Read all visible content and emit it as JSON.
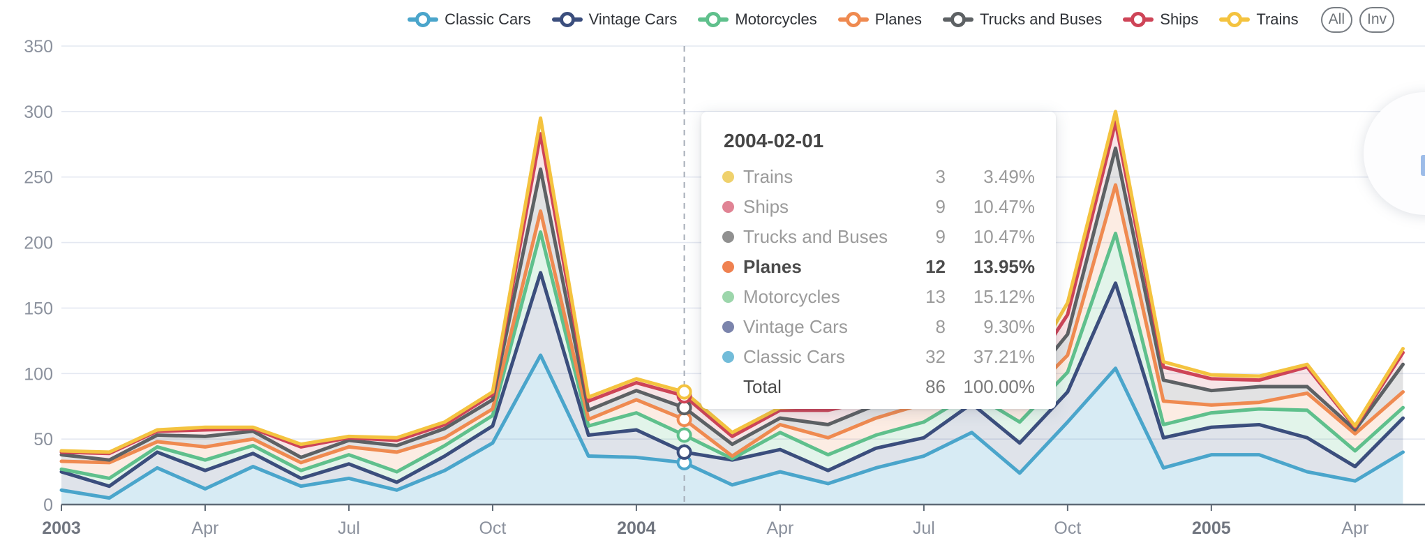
{
  "legend": {
    "items": [
      {
        "label": "Classic Cars",
        "color": "#4aa5cb"
      },
      {
        "label": "Vintage Cars",
        "color": "#3b4e7d"
      },
      {
        "label": "Motorcycles",
        "color": "#5fc08c"
      },
      {
        "label": "Planes",
        "color": "#ef8a50"
      },
      {
        "label": "Trucks and Buses",
        "color": "#5d6164"
      },
      {
        "label": "Ships",
        "color": "#ce4457"
      },
      {
        "label": "Trains",
        "color": "#f4c33f"
      }
    ],
    "buttons": [
      {
        "label": "All",
        "name": "legend-select-all-button"
      },
      {
        "label": "Inv",
        "name": "legend-invert-button"
      }
    ]
  },
  "chart_data": {
    "type": "area",
    "stacked": true,
    "grid": true,
    "x": [
      "2003-01",
      "2003-02",
      "2003-03",
      "2003-04",
      "2003-05",
      "2003-06",
      "2003-07",
      "2003-08",
      "2003-09",
      "2003-10",
      "2003-11",
      "2003-12",
      "2004-01",
      "2004-02",
      "2004-03",
      "2004-04",
      "2004-05",
      "2004-06",
      "2004-07",
      "2004-08",
      "2004-09",
      "2004-10",
      "2004-11",
      "2004-12",
      "2005-01",
      "2005-02",
      "2005-03",
      "2005-04",
      "2005-05"
    ],
    "x_tick_labels": [
      {
        "index": 0,
        "label": "2003",
        "bold": true
      },
      {
        "index": 3,
        "label": "Apr",
        "bold": false
      },
      {
        "index": 6,
        "label": "Jul",
        "bold": false
      },
      {
        "index": 9,
        "label": "Oct",
        "bold": false
      },
      {
        "index": 12,
        "label": "2004",
        "bold": true
      },
      {
        "index": 15,
        "label": "Apr",
        "bold": false
      },
      {
        "index": 18,
        "label": "Jul",
        "bold": false
      },
      {
        "index": 21,
        "label": "Oct",
        "bold": false
      },
      {
        "index": 24,
        "label": "2005",
        "bold": true
      },
      {
        "index": 27,
        "label": "Apr",
        "bold": false
      }
    ],
    "ylim": [
      0,
      350
    ],
    "y_ticks": [
      0,
      50,
      100,
      150,
      200,
      250,
      300,
      350
    ],
    "series": [
      {
        "name": "Classic Cars",
        "color": "#4aa5cb",
        "fill": "rgba(74,165,203,0.22)",
        "values": [
          11,
          5,
          28,
          12,
          29,
          14,
          20,
          11,
          26,
          47,
          114,
          37,
          36,
          32,
          15,
          25,
          16,
          28,
          37,
          55,
          24,
          63,
          104,
          28,
          38,
          38,
          25,
          18,
          40
        ]
      },
      {
        "name": "Vintage Cars",
        "color": "#3b4e7d",
        "fill": "rgba(59,78,125,0.16)",
        "values": [
          14,
          9,
          12,
          14,
          10,
          6,
          11,
          6,
          11,
          13,
          63,
          16,
          21,
          8,
          19,
          17,
          10,
          15,
          14,
          22,
          23,
          23,
          65,
          23,
          21,
          23,
          26,
          11,
          26
        ]
      },
      {
        "name": "Motorcycles",
        "color": "#5fc08c",
        "fill": "rgba(95,192,140,0.18)",
        "values": [
          2,
          6,
          4,
          8,
          6,
          6,
          7,
          8,
          8,
          8,
          31,
          7,
          13,
          13,
          1,
          13,
          12,
          10,
          12,
          8,
          16,
          15,
          38,
          10,
          11,
          12,
          21,
          12,
          8
        ]
      },
      {
        "name": "Planes",
        "color": "#ef8a50",
        "fill": "rgba(239,138,80,0.16)",
        "values": [
          6,
          12,
          4,
          10,
          5,
          6,
          6,
          15,
          6,
          5,
          16,
          5,
          10,
          12,
          2,
          6,
          13,
          13,
          14,
          5,
          14,
          13,
          37,
          18,
          6,
          5,
          13,
          13,
          12
        ]
      },
      {
        "name": "Trucks and Buses",
        "color": "#5d6164",
        "fill": "rgba(93,97,100,0.18)",
        "values": [
          5,
          2,
          5,
          8,
          6,
          4,
          5,
          5,
          7,
          7,
          32,
          7,
          7,
          9,
          9,
          5,
          10,
          10,
          5,
          6,
          8,
          16,
          28,
          16,
          11,
          12,
          5,
          3,
          21
        ]
      },
      {
        "name": "Ships",
        "color": "#ce4457",
        "fill": "rgba(206,68,87,0.14)",
        "values": [
          2,
          5,
          3,
          5,
          2,
          8,
          2,
          4,
          3,
          4,
          27,
          7,
          6,
          9,
          6,
          6,
          11,
          4,
          5,
          5,
          4,
          15,
          20,
          10,
          9,
          5,
          15,
          2,
          9
        ]
      },
      {
        "name": "Trains",
        "color": "#f4c33f",
        "fill": "rgba(244,195,63,0.14)",
        "values": [
          1,
          1,
          1,
          2,
          1,
          2,
          1,
          2,
          2,
          2,
          12,
          3,
          3,
          3,
          3,
          2,
          3,
          3,
          2,
          2,
          2,
          9,
          8,
          4,
          3,
          3,
          2,
          1,
          3
        ]
      }
    ],
    "highlight": {
      "x_index": 13,
      "date": "2004-02-01"
    },
    "legend_position": "top"
  },
  "tooltip": {
    "title": "2004-02-01",
    "rows": [
      {
        "label": "Trains",
        "value": "3",
        "percent": "3.49%",
        "color": "#efd16c",
        "bold": false,
        "is_total": false
      },
      {
        "label": "Ships",
        "value": "9",
        "percent": "10.47%",
        "color": "#e08394",
        "bold": false,
        "is_total": false
      },
      {
        "label": "Trucks and Buses",
        "value": "9",
        "percent": "10.47%",
        "color": "#909090",
        "bold": false,
        "is_total": false
      },
      {
        "label": "Planes",
        "value": "12",
        "percent": "13.95%",
        "color": "#ef8150",
        "bold": true,
        "is_total": false
      },
      {
        "label": "Motorcycles",
        "value": "13",
        "percent": "15.12%",
        "color": "#9cd6ab",
        "bold": false,
        "is_total": false
      },
      {
        "label": "Vintage Cars",
        "value": "8",
        "percent": "9.30%",
        "color": "#7b84ac",
        "bold": false,
        "is_total": false
      },
      {
        "label": "Classic Cars",
        "value": "32",
        "percent": "37.21%",
        "color": "#72bcd9",
        "bold": false,
        "is_total": false
      },
      {
        "label": "Total",
        "value": "86",
        "percent": "100.00%",
        "color": null,
        "bold": false,
        "is_total": true
      }
    ]
  },
  "style": {
    "grid_color": "#e4e8f1",
    "axis_color": "#5f6a76",
    "tick_label_color": "#8b919d",
    "year_label_color": "#70757f",
    "dashed_line_color": "#a6adb8"
  }
}
